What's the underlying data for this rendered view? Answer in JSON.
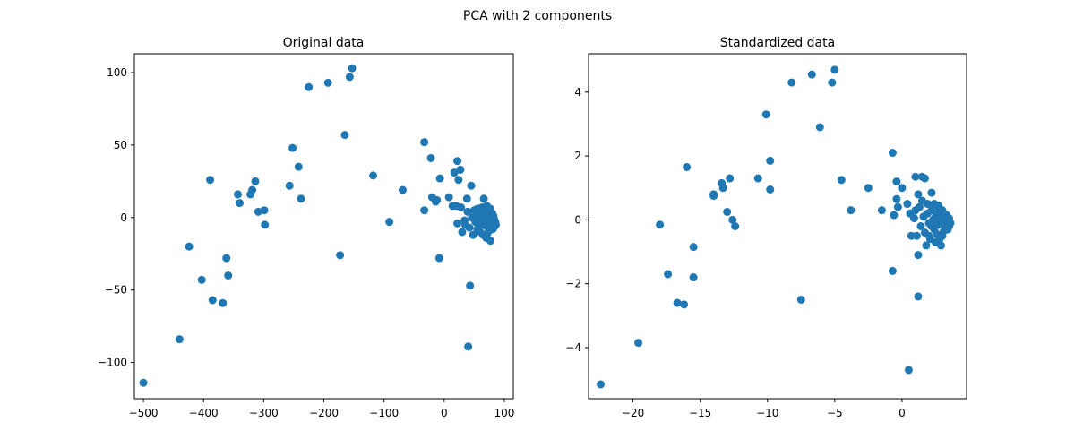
{
  "suptitle": "PCA with 2 components",
  "colors": {
    "marker": "#1f77b4",
    "axes": "#000000",
    "background": "#ffffff"
  },
  "chart_data": [
    {
      "type": "scatter",
      "title": "Original data",
      "xlabel": "",
      "ylabel": "",
      "xlim": [
        -515,
        115
      ],
      "ylim": [
        -125,
        113
      ],
      "xticks": [
        -500,
        -400,
        -300,
        -200,
        -100,
        0,
        100
      ],
      "yticks": [
        -100,
        -50,
        0,
        50,
        100
      ],
      "grid": false,
      "points": [
        [
          -500,
          -114
        ],
        [
          -440,
          -84
        ],
        [
          -424,
          -20
        ],
        [
          -403,
          -43
        ],
        [
          -389,
          26
        ],
        [
          -385,
          -57
        ],
        [
          -368,
          -59
        ],
        [
          -362,
          -28
        ],
        [
          -359,
          -40
        ],
        [
          -343,
          16
        ],
        [
          -340,
          10
        ],
        [
          -322,
          16
        ],
        [
          -319,
          19
        ],
        [
          -314,
          25
        ],
        [
          -309,
          4
        ],
        [
          -299,
          5
        ],
        [
          -298,
          -5
        ],
        [
          -257,
          22
        ],
        [
          -252,
          48
        ],
        [
          -242,
          35
        ],
        [
          -238,
          13
        ],
        [
          -225,
          90
        ],
        [
          -193,
          93
        ],
        [
          -173,
          -26
        ],
        [
          -165,
          57
        ],
        [
          -157,
          97
        ],
        [
          -153,
          103
        ],
        [
          -118,
          29
        ],
        [
          -69,
          19
        ],
        [
          -91,
          -3
        ],
        [
          -33,
          52
        ],
        [
          -33,
          5
        ],
        [
          -22,
          41
        ],
        [
          -20,
          14
        ],
        [
          -14,
          11
        ],
        [
          -12,
          12
        ],
        [
          -8,
          -28
        ],
        [
          -7,
          27
        ],
        [
          8,
          14
        ],
        [
          14,
          8
        ],
        [
          17,
          31
        ],
        [
          20,
          8
        ],
        [
          22,
          39
        ],
        [
          22,
          -4
        ],
        [
          24,
          26
        ],
        [
          27,
          33
        ],
        [
          28,
          7
        ],
        [
          30,
          -10
        ],
        [
          34,
          -2
        ],
        [
          38,
          13
        ],
        [
          39,
          4
        ],
        [
          40,
          -89
        ],
        [
          43,
          -47
        ],
        [
          45,
          22
        ],
        [
          35,
          -5
        ],
        [
          42,
          -7
        ],
        [
          46,
          0
        ],
        [
          50,
          5
        ],
        [
          52,
          -3
        ],
        [
          54,
          3
        ],
        [
          55,
          -8
        ],
        [
          57,
          6
        ],
        [
          58,
          1
        ],
        [
          60,
          -2
        ],
        [
          61,
          4
        ],
        [
          62,
          -5
        ],
        [
          63,
          7
        ],
        [
          64,
          2
        ],
        [
          65,
          0
        ],
        [
          66,
          -4
        ],
        [
          66,
          13
        ],
        [
          67,
          5
        ],
        [
          68,
          -1
        ],
        [
          69,
          3
        ],
        [
          70,
          -14
        ],
        [
          70,
          -6
        ],
        [
          71,
          8
        ],
        [
          72,
          1
        ],
        [
          73,
          -3
        ],
        [
          74,
          4
        ],
        [
          75,
          -9
        ],
        [
          75,
          -1
        ],
        [
          76,
          2
        ],
        [
          77,
          -16
        ],
        [
          77,
          6
        ],
        [
          78,
          -5
        ],
        [
          79,
          0
        ],
        [
          80,
          -2
        ],
        [
          80,
          3
        ],
        [
          81,
          -8
        ],
        [
          82,
          -4
        ],
        [
          82,
          1
        ],
        [
          83,
          -1
        ],
        [
          84,
          -6
        ],
        [
          85,
          -3
        ],
        [
          86,
          -5
        ],
        [
          60,
          -10
        ],
        [
          55,
          6
        ],
        [
          48,
          -12
        ],
        [
          65,
          -12
        ],
        [
          72,
          -11
        ]
      ]
    },
    {
      "type": "scatter",
      "title": "Standardized data",
      "xlabel": "",
      "ylabel": "",
      "xlim": [
        -23.3,
        4.8
      ],
      "ylim": [
        -5.6,
        5.2
      ],
      "xticks": [
        -20,
        -15,
        -10,
        -5,
        0
      ],
      "yticks": [
        -4,
        -2,
        0,
        2,
        4
      ],
      "grid": false,
      "points": [
        [
          -22.4,
          -5.15
        ],
        [
          -19.6,
          -3.85
        ],
        [
          -18.0,
          -0.15
        ],
        [
          -17.4,
          -1.7
        ],
        [
          -16.7,
          -2.6
        ],
        [
          -16.2,
          -2.65
        ],
        [
          -16.0,
          1.65
        ],
        [
          -15.5,
          -0.85
        ],
        [
          -15.5,
          -1.8
        ],
        [
          -14.0,
          0.75
        ],
        [
          -14.0,
          0.8
        ],
        [
          -13.4,
          1.15
        ],
        [
          -13.3,
          1.0
        ],
        [
          -13.0,
          0.25
        ],
        [
          -12.8,
          1.3
        ],
        [
          -12.6,
          0.0
        ],
        [
          -12.4,
          -0.2
        ],
        [
          -10.7,
          1.3
        ],
        [
          -10.1,
          3.3
        ],
        [
          -9.8,
          0.95
        ],
        [
          -9.8,
          1.85
        ],
        [
          -8.2,
          4.3
        ],
        [
          -7.5,
          -2.5
        ],
        [
          -6.7,
          4.55
        ],
        [
          -6.1,
          2.9
        ],
        [
          -5.2,
          4.3
        ],
        [
          -5.0,
          4.7
        ],
        [
          -4.5,
          1.25
        ],
        [
          -3.8,
          0.3
        ],
        [
          -2.5,
          1.0
        ],
        [
          -1.5,
          0.3
        ],
        [
          -0.7,
          2.1
        ],
        [
          -0.7,
          -1.6
        ],
        [
          -0.6,
          0.15
        ],
        [
          -0.4,
          0.65
        ],
        [
          -0.4,
          1.2
        ],
        [
          -0.3,
          0.4
        ],
        [
          0.0,
          1.0
        ],
        [
          0.4,
          0.5
        ],
        [
          0.5,
          -4.7
        ],
        [
          0.6,
          0.2
        ],
        [
          0.7,
          -0.5
        ],
        [
          0.9,
          0.05
        ],
        [
          1.0,
          1.35
        ],
        [
          1.0,
          0.3
        ],
        [
          1.1,
          -0.5
        ],
        [
          1.2,
          0.8
        ],
        [
          1.2,
          -1.1
        ],
        [
          1.2,
          -2.4
        ],
        [
          1.3,
          0.4
        ],
        [
          1.4,
          -0.2
        ],
        [
          1.5,
          1.35
        ],
        [
          1.6,
          0.1
        ],
        [
          1.7,
          -0.4
        ],
        [
          1.7,
          1.3
        ],
        [
          1.8,
          -0.8
        ],
        [
          1.9,
          0.5
        ],
        [
          1.9,
          0.2
        ],
        [
          2.0,
          -0.1
        ],
        [
          2.1,
          -0.6
        ],
        [
          2.2,
          0.85
        ],
        [
          2.2,
          0.3
        ],
        [
          2.3,
          0.0
        ],
        [
          2.4,
          -0.3
        ],
        [
          2.5,
          0.1
        ],
        [
          2.5,
          -0.7
        ],
        [
          2.6,
          0.25
        ],
        [
          2.6,
          -0.45
        ],
        [
          2.7,
          0.45
        ],
        [
          2.7,
          -0.15
        ],
        [
          2.8,
          0.05
        ],
        [
          2.8,
          -0.6
        ],
        [
          2.9,
          0.2
        ],
        [
          2.9,
          -0.8
        ],
        [
          3.0,
          -0.05
        ],
        [
          3.0,
          0.3
        ],
        [
          3.1,
          -0.35
        ],
        [
          3.1,
          0.1
        ],
        [
          3.2,
          -0.2
        ],
        [
          3.2,
          0.0
        ],
        [
          3.3,
          -0.15
        ],
        [
          3.3,
          0.15
        ],
        [
          3.4,
          -0.05
        ],
        [
          3.4,
          -0.3
        ],
        [
          3.5,
          -0.2
        ],
        [
          3.5,
          0.05
        ],
        [
          3.6,
          -0.1
        ],
        [
          2.0,
          -0.5
        ],
        [
          1.5,
          0.6
        ],
        [
          2.4,
          0.5
        ],
        [
          3.0,
          -0.5
        ],
        [
          2.2,
          -0.2
        ]
      ]
    }
  ]
}
